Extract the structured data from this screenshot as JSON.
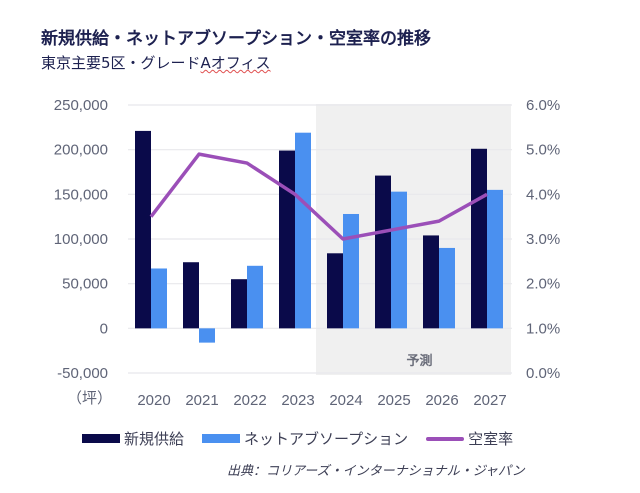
{
  "header": {
    "title": "新規供給・ネットアブソープション・空室率の推移",
    "subtitle_main": "東京主要5区・グレード",
    "subtitle_marked": "Aオフィス"
  },
  "chart_data": {
    "type": "bar",
    "title": "新規供給・ネットアブソープション・空室率の推移",
    "subtitle": "東京主要5区・グレードAオフィス",
    "categories": [
      "2020",
      "2021",
      "2022",
      "2023",
      "2024",
      "2025",
      "2026",
      "2027"
    ],
    "xlabel_unit": "（坪）",
    "series": [
      {
        "name": "新規供給",
        "type": "bar",
        "axis": "left",
        "color": "#0a0a4a",
        "values": [
          221000,
          74000,
          55000,
          199000,
          84000,
          171000,
          104000,
          201000
        ]
      },
      {
        "name": "ネットアブソープション",
        "type": "bar",
        "axis": "left",
        "color": "#4a90f0",
        "values": [
          67000,
          -16000,
          70000,
          219000,
          128000,
          153000,
          90000,
          155000
        ]
      },
      {
        "name": "空室率",
        "type": "line",
        "axis": "right",
        "color": "#9b4fb8",
        "values": [
          3.5,
          4.9,
          4.7,
          4.0,
          3.0,
          3.2,
          3.4,
          4.0
        ]
      }
    ],
    "y_left": {
      "range": [
        -50000,
        250000
      ],
      "ticks": [
        250000,
        200000,
        150000,
        100000,
        50000,
        0,
        -50000
      ],
      "tick_labels": [
        "250,000",
        "200,000",
        "150,000",
        "100,000",
        "50,000",
        "0",
        "-50,000"
      ]
    },
    "y_right": {
      "range": [
        0,
        6
      ],
      "ticks": [
        6,
        5,
        4,
        3,
        2,
        1,
        0
      ],
      "tick_labels": [
        "6.0%",
        "5.0%",
        "4.0%",
        "3.0%",
        "2.0%",
        "1.0%",
        "0.0%"
      ]
    },
    "forecast_region": {
      "from": "2024",
      "to": "2027",
      "label": "予測",
      "color": "#f0f0f0"
    },
    "grid": true,
    "legend_position": "bottom"
  },
  "legend": {
    "items": [
      {
        "label": "新規供給",
        "color": "#0a0a4a",
        "kind": "bar"
      },
      {
        "label": "ネットアブソープション",
        "color": "#4a90f0",
        "kind": "bar"
      },
      {
        "label": "空室率",
        "color": "#9b4fb8",
        "kind": "line"
      }
    ]
  },
  "source": "出典：コリアーズ・インターナショナル・ジャパン"
}
